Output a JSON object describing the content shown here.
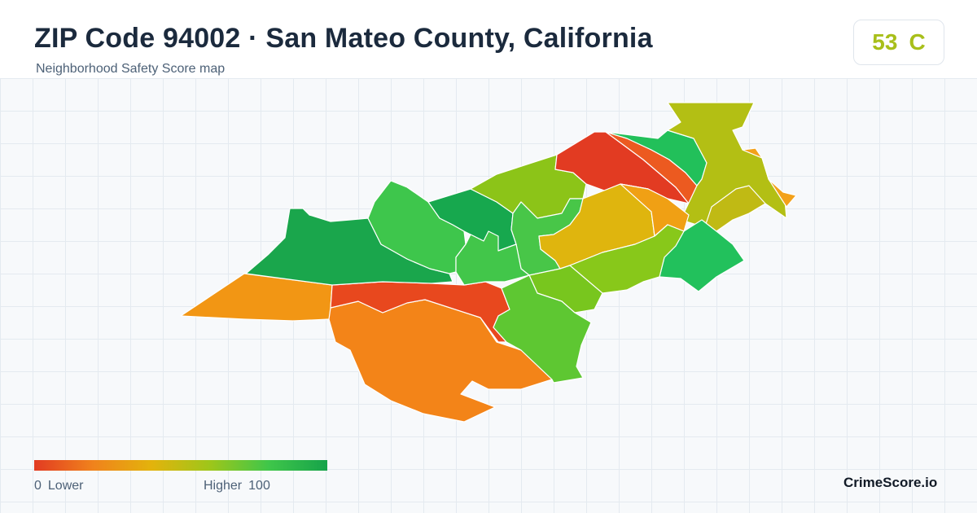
{
  "header": {
    "title": "ZIP Code 94002 · San Mateo County, California",
    "subtitle": "Neighborhood Safety Score map"
  },
  "score": {
    "value": "53",
    "grade": "C",
    "color": "#a8bf1a"
  },
  "legend": {
    "min_value": "0",
    "min_label": "Lower",
    "max_label": "Higher",
    "max_value": "100",
    "colors": [
      "#e23b22",
      "#f0821c",
      "#e3b30c",
      "#9ec61a",
      "#3fc64a",
      "#16a34a"
    ]
  },
  "brand": "CrimeScore.io",
  "map": {
    "regions": [
      {
        "name": "northwest-hills",
        "fill": "#1aa64c"
      },
      {
        "name": "west-hills",
        "fill": "#3ec64c"
      },
      {
        "name": "north-central-forest",
        "fill": "#17a84e"
      },
      {
        "name": "north-ridge",
        "fill": "#8cc418"
      },
      {
        "name": "north-center",
        "fill": "#e23b22"
      },
      {
        "name": "north-east-strip",
        "fill": "#ec5a20"
      },
      {
        "name": "north-green-strip",
        "fill": "#22c05a"
      },
      {
        "name": "northeast-corner",
        "fill": "#b3bf14"
      },
      {
        "name": "east-edge-orange",
        "fill": "#f3a11a"
      },
      {
        "name": "east-bay-strip",
        "fill": "#c0ba14"
      },
      {
        "name": "central-green",
        "fill": "#48c648"
      },
      {
        "name": "central-yellow",
        "fill": "#dfb50e"
      },
      {
        "name": "central-amber",
        "fill": "#f0a014"
      },
      {
        "name": "central-south",
        "fill": "#78c61e"
      },
      {
        "name": "east-lime",
        "fill": "#88c81a"
      },
      {
        "name": "east-green",
        "fill": "#22c15c"
      },
      {
        "name": "south-west-valley",
        "fill": "#f29614"
      },
      {
        "name": "south-red",
        "fill": "#e8481e"
      },
      {
        "name": "south-orange",
        "fill": "#f38418"
      },
      {
        "name": "south-east-green",
        "fill": "#5ec732"
      },
      {
        "name": "center-west-green",
        "fill": "#42c64a"
      }
    ]
  }
}
